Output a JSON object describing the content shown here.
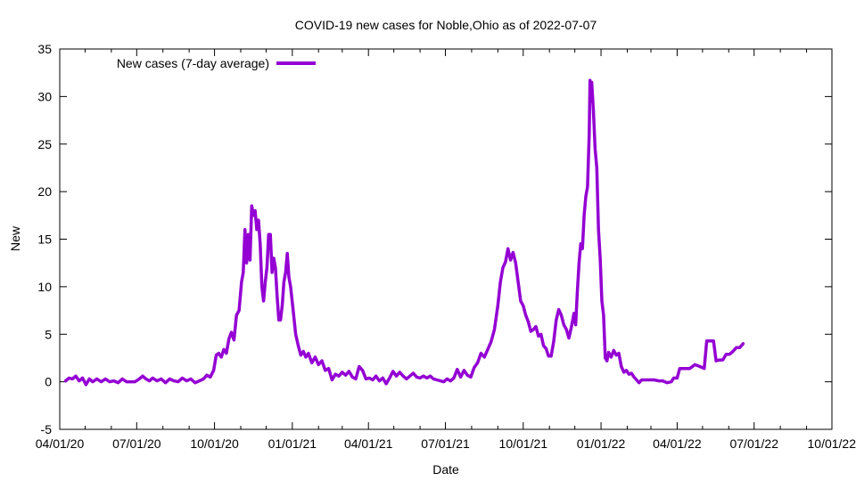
{
  "chart_data": {
    "type": "line",
    "title": "COVID-19 new cases for Noble,Ohio as of 2022-07-07",
    "xlabel": "Date",
    "ylabel": "New",
    "ylim": [
      -5,
      35
    ],
    "yticks": [
      -5,
      0,
      5,
      10,
      15,
      20,
      25,
      30,
      35
    ],
    "xlim": [
      "04/01/20",
      "10/01/22"
    ],
    "xticks": [
      "04/01/20",
      "07/01/20",
      "10/01/20",
      "01/01/21",
      "04/01/21",
      "07/01/21",
      "10/01/21",
      "01/01/22",
      "04/01/22",
      "07/01/22",
      "10/01/22"
    ],
    "legend_position": "top-left",
    "series": [
      {
        "name": "New cases (7-day average)",
        "color": "#9400d3",
        "points": [
          [
            "2020-04-08",
            0.1
          ],
          [
            "2020-04-12",
            0.4
          ],
          [
            "2020-04-16",
            0.3
          ],
          [
            "2020-04-20",
            0.6
          ],
          [
            "2020-04-24",
            0.1
          ],
          [
            "2020-04-28",
            0.4
          ],
          [
            "2020-05-02",
            -0.3
          ],
          [
            "2020-05-06",
            0.3
          ],
          [
            "2020-05-10",
            0.0
          ],
          [
            "2020-05-15",
            0.3
          ],
          [
            "2020-05-20",
            0.0
          ],
          [
            "2020-05-25",
            0.3
          ],
          [
            "2020-05-30",
            0.0
          ],
          [
            "2020-06-04",
            0.1
          ],
          [
            "2020-06-09",
            -0.1
          ],
          [
            "2020-06-14",
            0.3
          ],
          [
            "2020-06-19",
            0.0
          ],
          [
            "2020-06-24",
            0.0
          ],
          [
            "2020-06-29",
            0.0
          ],
          [
            "2020-07-04",
            0.3
          ],
          [
            "2020-07-08",
            0.6
          ],
          [
            "2020-07-12",
            0.3
          ],
          [
            "2020-07-16",
            0.1
          ],
          [
            "2020-07-20",
            0.4
          ],
          [
            "2020-07-25",
            0.1
          ],
          [
            "2020-07-30",
            0.3
          ],
          [
            "2020-08-04",
            -0.1
          ],
          [
            "2020-08-09",
            0.3
          ],
          [
            "2020-08-14",
            0.1
          ],
          [
            "2020-08-19",
            0.0
          ],
          [
            "2020-08-24",
            0.4
          ],
          [
            "2020-08-29",
            0.1
          ],
          [
            "2020-09-03",
            0.3
          ],
          [
            "2020-09-08",
            -0.1
          ],
          [
            "2020-09-13",
            0.1
          ],
          [
            "2020-09-18",
            0.3
          ],
          [
            "2020-09-22",
            0.7
          ],
          [
            "2020-09-26",
            0.5
          ],
          [
            "2020-09-30",
            1.2
          ],
          [
            "2020-10-03",
            2.8
          ],
          [
            "2020-10-06",
            3.0
          ],
          [
            "2020-10-09",
            2.6
          ],
          [
            "2020-10-12",
            3.4
          ],
          [
            "2020-10-15",
            3.0
          ],
          [
            "2020-10-18",
            4.5
          ],
          [
            "2020-10-21",
            5.2
          ],
          [
            "2020-10-24",
            4.4
          ],
          [
            "2020-10-27",
            7.0
          ],
          [
            "2020-10-30",
            7.5
          ],
          [
            "2020-11-02",
            10.5
          ],
          [
            "2020-11-04",
            11.5
          ],
          [
            "2020-11-06",
            16.0
          ],
          [
            "2020-11-08",
            12.5
          ],
          [
            "2020-11-10",
            15.5
          ],
          [
            "2020-11-12",
            12.8
          ],
          [
            "2020-11-14",
            18.5
          ],
          [
            "2020-11-16",
            17.5
          ],
          [
            "2020-11-18",
            18.0
          ],
          [
            "2020-11-20",
            16.0
          ],
          [
            "2020-11-22",
            17.0
          ],
          [
            "2020-11-24",
            14.5
          ],
          [
            "2020-11-26",
            10.0
          ],
          [
            "2020-11-28",
            8.5
          ],
          [
            "2020-11-30",
            10.5
          ],
          [
            "2020-12-02",
            12.0
          ],
          [
            "2020-12-04",
            15.5
          ],
          [
            "2020-12-06",
            15.5
          ],
          [
            "2020-12-08",
            11.5
          ],
          [
            "2020-12-10",
            13.0
          ],
          [
            "2020-12-12",
            12.0
          ],
          [
            "2020-12-14",
            9.0
          ],
          [
            "2020-12-16",
            6.5
          ],
          [
            "2020-12-18",
            6.5
          ],
          [
            "2020-12-20",
            8.0
          ],
          [
            "2020-12-22",
            10.5
          ],
          [
            "2020-12-24",
            11.5
          ],
          [
            "2020-12-26",
            13.5
          ],
          [
            "2020-12-28",
            11.0
          ],
          [
            "2020-12-30",
            10.0
          ],
          [
            "2021-01-02",
            7.5
          ],
          [
            "2021-01-05",
            5.0
          ],
          [
            "2021-01-08",
            3.8
          ],
          [
            "2021-01-11",
            2.8
          ],
          [
            "2021-01-14",
            3.2
          ],
          [
            "2021-01-17",
            2.6
          ],
          [
            "2021-01-20",
            3.0
          ],
          [
            "2021-01-24",
            2.0
          ],
          [
            "2021-01-28",
            2.6
          ],
          [
            "2021-02-01",
            1.8
          ],
          [
            "2021-02-05",
            2.2
          ],
          [
            "2021-02-09",
            1.2
          ],
          [
            "2021-02-13",
            1.4
          ],
          [
            "2021-02-17",
            0.2
          ],
          [
            "2021-02-21",
            0.8
          ],
          [
            "2021-02-25",
            0.6
          ],
          [
            "2021-03-01",
            1.0
          ],
          [
            "2021-03-05",
            0.7
          ],
          [
            "2021-03-09",
            1.1
          ],
          [
            "2021-03-13",
            0.5
          ],
          [
            "2021-03-17",
            0.3
          ],
          [
            "2021-03-21",
            1.6
          ],
          [
            "2021-03-25",
            1.2
          ],
          [
            "2021-03-29",
            0.3
          ],
          [
            "2021-04-02",
            0.4
          ],
          [
            "2021-04-06",
            0.2
          ],
          [
            "2021-04-10",
            0.6
          ],
          [
            "2021-04-14",
            0.1
          ],
          [
            "2021-04-18",
            0.4
          ],
          [
            "2021-04-22",
            -0.2
          ],
          [
            "2021-04-26",
            0.4
          ],
          [
            "2021-04-30",
            1.1
          ],
          [
            "2021-05-04",
            0.6
          ],
          [
            "2021-05-08",
            1.0
          ],
          [
            "2021-05-12",
            0.6
          ],
          [
            "2021-05-16",
            0.3
          ],
          [
            "2021-05-20",
            0.6
          ],
          [
            "2021-05-24",
            0.9
          ],
          [
            "2021-05-28",
            0.5
          ],
          [
            "2021-06-01",
            0.4
          ],
          [
            "2021-06-05",
            0.6
          ],
          [
            "2021-06-09",
            0.4
          ],
          [
            "2021-06-13",
            0.6
          ],
          [
            "2021-06-17",
            0.3
          ],
          [
            "2021-06-21",
            0.2
          ],
          [
            "2021-06-25",
            0.1
          ],
          [
            "2021-06-29",
            0.0
          ],
          [
            "2021-07-03",
            0.3
          ],
          [
            "2021-07-07",
            0.1
          ],
          [
            "2021-07-11",
            0.4
          ],
          [
            "2021-07-15",
            1.3
          ],
          [
            "2021-07-19",
            0.5
          ],
          [
            "2021-07-23",
            1.2
          ],
          [
            "2021-07-27",
            0.7
          ],
          [
            "2021-07-31",
            0.5
          ],
          [
            "2021-08-04",
            1.5
          ],
          [
            "2021-08-08",
            2.0
          ],
          [
            "2021-08-12",
            3.0
          ],
          [
            "2021-08-16",
            2.6
          ],
          [
            "2021-08-20",
            3.4
          ],
          [
            "2021-08-24",
            4.2
          ],
          [
            "2021-08-28",
            5.5
          ],
          [
            "2021-09-01",
            8.0
          ],
          [
            "2021-09-04",
            10.5
          ],
          [
            "2021-09-07",
            12.0
          ],
          [
            "2021-09-10",
            12.6
          ],
          [
            "2021-09-13",
            14.0
          ],
          [
            "2021-09-16",
            12.8
          ],
          [
            "2021-09-19",
            13.6
          ],
          [
            "2021-09-22",
            12.5
          ],
          [
            "2021-09-25",
            10.5
          ],
          [
            "2021-09-28",
            8.5
          ],
          [
            "2021-10-01",
            8.0
          ],
          [
            "2021-10-04",
            7.0
          ],
          [
            "2021-10-07",
            6.3
          ],
          [
            "2021-10-10",
            5.3
          ],
          [
            "2021-10-13",
            5.5
          ],
          [
            "2021-10-16",
            5.8
          ],
          [
            "2021-10-19",
            4.8
          ],
          [
            "2021-10-22",
            5.0
          ],
          [
            "2021-10-25",
            3.8
          ],
          [
            "2021-10-28",
            3.5
          ],
          [
            "2021-10-31",
            2.7
          ],
          [
            "2021-11-03",
            2.7
          ],
          [
            "2021-11-06",
            4.2
          ],
          [
            "2021-11-09",
            6.5
          ],
          [
            "2021-11-12",
            7.6
          ],
          [
            "2021-11-15",
            7.0
          ],
          [
            "2021-11-18",
            6.0
          ],
          [
            "2021-11-21",
            5.5
          ],
          [
            "2021-11-24",
            4.6
          ],
          [
            "2021-11-27",
            5.8
          ],
          [
            "2021-11-30",
            7.2
          ],
          [
            "2021-12-02",
            6.0
          ],
          [
            "2021-12-04",
            9.5
          ],
          [
            "2021-12-06",
            12.5
          ],
          [
            "2021-12-08",
            14.5
          ],
          [
            "2021-12-10",
            14.0
          ],
          [
            "2021-12-12",
            17.5
          ],
          [
            "2021-12-14",
            19.5
          ],
          [
            "2021-12-16",
            20.5
          ],
          [
            "2021-12-18",
            26.0
          ],
          [
            "2021-12-19",
            31.7
          ],
          [
            "2021-12-20",
            29.5
          ],
          [
            "2021-12-21",
            31.5
          ],
          [
            "2021-12-23",
            28.5
          ],
          [
            "2021-12-25",
            24.5
          ],
          [
            "2021-12-27",
            22.5
          ],
          [
            "2021-12-29",
            16.0
          ],
          [
            "2021-12-31",
            13.0
          ],
          [
            "2022-01-02",
            8.5
          ],
          [
            "2022-01-04",
            7.0
          ],
          [
            "2022-01-06",
            2.5
          ],
          [
            "2022-01-08",
            2.2
          ],
          [
            "2022-01-10",
            3.1
          ],
          [
            "2022-01-13",
            2.6
          ],
          [
            "2022-01-16",
            3.3
          ],
          [
            "2022-01-19",
            2.8
          ],
          [
            "2022-01-22",
            3.0
          ],
          [
            "2022-01-25",
            1.6
          ],
          [
            "2022-01-28",
            1.0
          ],
          [
            "2022-01-31",
            1.2
          ],
          [
            "2022-02-03",
            0.8
          ],
          [
            "2022-02-06",
            0.9
          ],
          [
            "2022-02-09",
            0.5
          ],
          [
            "2022-02-12",
            0.2
          ],
          [
            "2022-02-15",
            -0.1
          ],
          [
            "2022-02-18",
            0.2
          ],
          [
            "2022-02-23",
            0.2
          ],
          [
            "2022-02-28",
            0.2
          ],
          [
            "2022-03-05",
            0.2
          ],
          [
            "2022-03-10",
            0.1
          ],
          [
            "2022-03-15",
            0.1
          ],
          [
            "2022-03-20",
            -0.1
          ],
          [
            "2022-03-25",
            0.0
          ],
          [
            "2022-03-28",
            0.4
          ],
          [
            "2022-04-01",
            0.4
          ],
          [
            "2022-04-04",
            1.4
          ],
          [
            "2022-04-10",
            1.4
          ],
          [
            "2022-04-16",
            1.4
          ],
          [
            "2022-04-22",
            1.8
          ],
          [
            "2022-04-28",
            1.6
          ],
          [
            "2022-05-03",
            1.4
          ],
          [
            "2022-05-06",
            4.3
          ],
          [
            "2022-05-10",
            4.3
          ],
          [
            "2022-05-14",
            4.3
          ],
          [
            "2022-05-17",
            2.2
          ],
          [
            "2022-05-21",
            2.3
          ],
          [
            "2022-05-25",
            2.3
          ],
          [
            "2022-05-29",
            2.9
          ],
          [
            "2022-06-02",
            2.9
          ],
          [
            "2022-06-06",
            3.2
          ],
          [
            "2022-06-10",
            3.6
          ],
          [
            "2022-06-14",
            3.6
          ],
          [
            "2022-06-18",
            4.0
          ]
        ]
      }
    ]
  }
}
